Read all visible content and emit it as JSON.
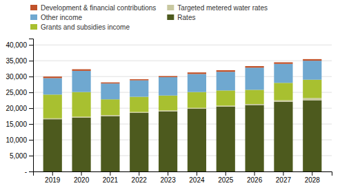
{
  "chart_data": {
    "type": "bar",
    "stacked": true,
    "grid": true,
    "legend": "top",
    "categories": [
      "2019",
      "2020",
      "2021",
      "2022",
      "2023",
      "2024",
      "2025",
      "2026",
      "2027",
      "2028"
    ],
    "series": [
      {
        "name": "Rates",
        "color": "#4d5a1e",
        "values": [
          16500,
          17000,
          17500,
          18500,
          19000,
          19800,
          20500,
          21000,
          22000,
          22500
        ]
      },
      {
        "name": "Targeted metered water rates",
        "color": "#c8c8a0",
        "values": [
          300,
          300,
          300,
          300,
          300,
          300,
          300,
          300,
          500,
          700
        ]
      },
      {
        "name": "Grants and subsidies income",
        "color": "#a8c030",
        "values": [
          7500,
          7800,
          5000,
          4800,
          4700,
          5000,
          4800,
          4500,
          5500,
          5800
        ]
      },
      {
        "name": "Other income",
        "color": "#6fa8d0",
        "values": [
          5200,
          6700,
          5000,
          5200,
          5800,
          5700,
          5900,
          7000,
          6000,
          6000
        ]
      },
      {
        "name": "Development & financial contributions",
        "color": "#c0522a",
        "values": [
          500,
          500,
          350,
          350,
          350,
          500,
          500,
          500,
          500,
          500
        ]
      }
    ],
    "ylim": [
      0,
      42000
    ],
    "yticks": [
      {
        "value": 0,
        "label": "-"
      },
      {
        "value": 5000,
        "label": "5,000"
      },
      {
        "value": 10000,
        "label": "10,000"
      },
      {
        "value": 15000,
        "label": "15,000"
      },
      {
        "value": 20000,
        "label": "20,000"
      },
      {
        "value": 25000,
        "label": "25,000"
      },
      {
        "value": 30000,
        "label": "30,000"
      },
      {
        "value": 35000,
        "label": "35,000"
      },
      {
        "value": 40000,
        "label": "40,000"
      }
    ]
  }
}
